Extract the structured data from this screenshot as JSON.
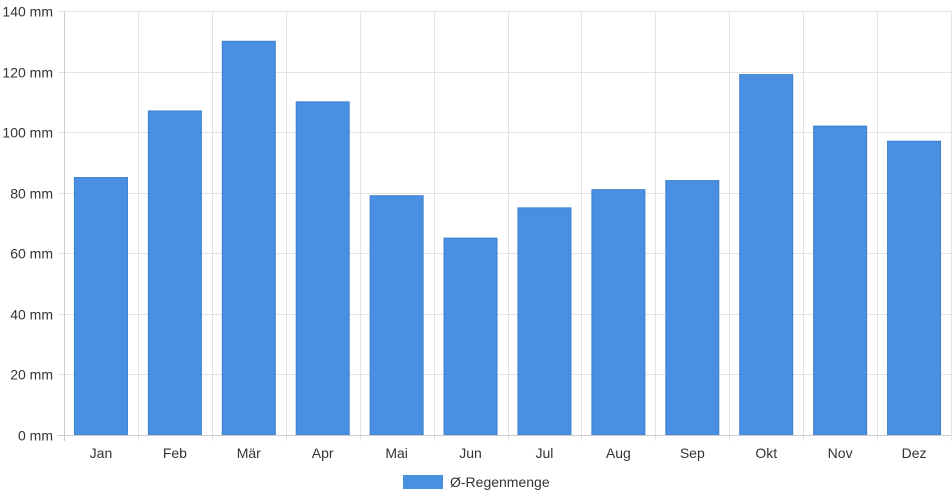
{
  "chart_data": {
    "type": "bar",
    "categories": [
      "Jan",
      "Feb",
      "Mär",
      "Apr",
      "Mai",
      "Jun",
      "Jul",
      "Aug",
      "Sep",
      "Okt",
      "Nov",
      "Dez"
    ],
    "series": [
      {
        "name": "Ø-Regenmenge",
        "color": "#4a90e2",
        "values": [
          85,
          107,
          130,
          110,
          79,
          65,
          75,
          81,
          84,
          119,
          102,
          97
        ]
      }
    ],
    "y_ticks": [
      0,
      20,
      40,
      60,
      80,
      100,
      120,
      140
    ],
    "y_unit": "mm",
    "ylim": [
      0,
      140
    ],
    "grid": true,
    "legend_position": "bottom-center",
    "title": "",
    "xlabel": "",
    "ylabel": ""
  }
}
